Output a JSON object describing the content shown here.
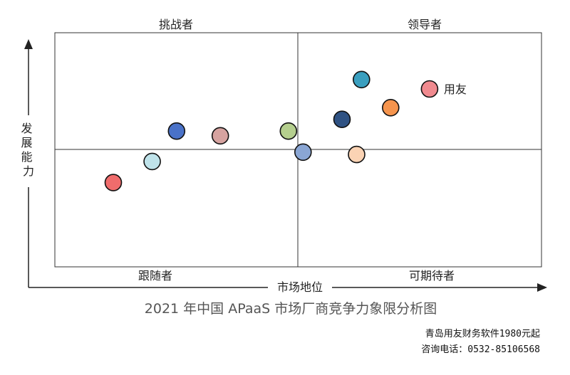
{
  "chart_data": {
    "type": "scatter",
    "title": "2021 年中国 APaaS 市场厂商竞争力象限分析图",
    "xlabel": "市场地位",
    "ylabel": "发展能力",
    "xlim": [
      0,
      10
    ],
    "ylim": [
      0,
      10
    ],
    "quadrants": {
      "top_left": "挑战者",
      "top_right": "领导者",
      "bottom_left": "跟随者",
      "bottom_right": "可期待者"
    },
    "points": [
      {
        "x": 1.2,
        "y": 3.6,
        "color": "#f06c6c",
        "label": ""
      },
      {
        "x": 2.0,
        "y": 4.5,
        "color": "#bfe3ea",
        "label": ""
      },
      {
        "x": 5.1,
        "y": 4.9,
        "color": "#8aa6d4",
        "label": ""
      },
      {
        "x": 6.2,
        "y": 4.8,
        "color": "#fbd3b4",
        "label": ""
      },
      {
        "x": 5.9,
        "y": 6.3,
        "color": "#2f5283",
        "label": ""
      },
      {
        "x": 6.9,
        "y": 6.8,
        "color": "#f5944d",
        "label": ""
      },
      {
        "x": 2.5,
        "y": 5.8,
        "color": "#4a72c8",
        "label": ""
      },
      {
        "x": 3.4,
        "y": 5.6,
        "color": "#d6a3a0",
        "label": ""
      },
      {
        "x": 4.8,
        "y": 5.8,
        "color": "#b5cf8e",
        "label": ""
      },
      {
        "x": 6.3,
        "y": 8.0,
        "color": "#3a9fbf",
        "label": ""
      },
      {
        "x": 7.7,
        "y": 7.6,
        "color": "#f08a8f",
        "label": "用友"
      }
    ]
  },
  "footer": {
    "line1": "青岛用友财务软件1980元起",
    "line2": "咨询电话：0532-85106568"
  }
}
